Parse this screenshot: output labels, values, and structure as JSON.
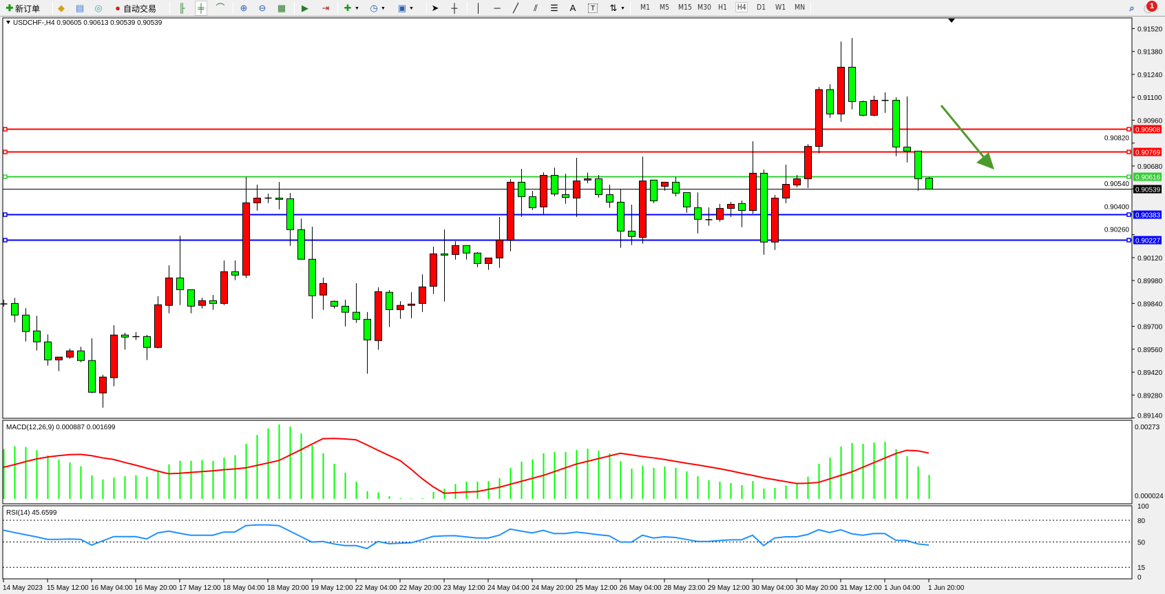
{
  "toolbar": {
    "new_order_label": "新订单",
    "auto_trading_label": "自动交易",
    "timeframes": [
      "M1",
      "M5",
      "M15",
      "M30",
      "H1",
      "H4",
      "D1",
      "W1",
      "MN"
    ],
    "active_timeframe": "H4",
    "notification_count": "1",
    "icons": [
      "new-order-icon",
      "gold-icon",
      "terminal-icon",
      "signals-icon",
      "auto-trading-icon",
      "bar-chart-icon",
      "candlestick-icon",
      "line-chart-icon",
      "zoom-in-icon",
      "zoom-out-icon",
      "tile-windows-icon",
      "auto-scroll-icon",
      "chart-shift-icon",
      "indicators-icon",
      "periods-icon",
      "templates-icon",
      "cursor-icon",
      "crosshair-icon",
      "vertical-line-icon",
      "horizontal-line-icon",
      "trendline-icon",
      "equidistant-channel-icon",
      "fibonacci-icon",
      "text-icon",
      "text-label-icon",
      "arrows-icon",
      "search-icon",
      "notification-icon"
    ],
    "text_tool_label": "A"
  },
  "chart": {
    "title": "USDCHF-,H4  0.90605 0.90613 0.90539 0.90539",
    "colors": {
      "bull": "#ff0000",
      "bear": "#00ff00",
      "resistance": "#ff0000",
      "pivot": "#32cd32",
      "support": "#0000ff",
      "bid": "#000000",
      "arrow": "#4e9a2a"
    },
    "ylim": [
      0.89138,
      0.91581
    ],
    "price_ticks": [
      "0.91520",
      "0.91380",
      "0.91240",
      "0.91100",
      "0.90960",
      "0.90820",
      "0.90680",
      "0.90540",
      "0.90400",
      "0.90260",
      "0.90120",
      "0.89980",
      "0.89840",
      "0.89700",
      "0.89560",
      "0.89420",
      "0.89280",
      "0.89140"
    ],
    "levels": [
      {
        "price": "0.90908",
        "type": "resistance",
        "color": "#ff0000"
      },
      {
        "price": "0.90769",
        "type": "resistance",
        "color": "#ff0000"
      },
      {
        "price": "0.90616",
        "type": "pivot",
        "color": "#32cd32"
      },
      {
        "price": "0.90539",
        "type": "bid",
        "color": "#000000"
      },
      {
        "price": "0.90383",
        "type": "support",
        "color": "#0000ff"
      },
      {
        "price": "0.90227",
        "type": "support",
        "color": "#0000ff"
      }
    ],
    "time_labels": [
      {
        "i": 0,
        "t": "14 May 2023"
      },
      {
        "i": 4,
        "t": "15 May 12:00"
      },
      {
        "i": 8,
        "t": "16 May 04:00"
      },
      {
        "i": 12,
        "t": "16 May 20:00"
      },
      {
        "i": 16,
        "t": "17 May 12:00"
      },
      {
        "i": 20,
        "t": "18 May 04:00"
      },
      {
        "i": 24,
        "t": "18 May 20:00"
      },
      {
        "i": 28,
        "t": "19 May 12:00"
      },
      {
        "i": 32,
        "t": "22 May 04:00"
      },
      {
        "i": 36,
        "t": "22 May 20:00"
      },
      {
        "i": 40,
        "t": "23 May 12:00"
      },
      {
        "i": 44,
        "t": "24 May 04:00"
      },
      {
        "i": 48,
        "t": "24 May 20:00"
      },
      {
        "i": 52,
        "t": "25 May 12:00"
      },
      {
        "i": 56,
        "t": "26 May 04:00"
      },
      {
        "i": 60,
        "t": "28 May 23:00"
      },
      {
        "i": 64,
        "t": "29 May 12:00"
      },
      {
        "i": 68,
        "t": "30 May 04:00"
      },
      {
        "i": 72,
        "t": "30 May 20:00"
      },
      {
        "i": 76,
        "t": "31 May 12:00"
      },
      {
        "i": 80,
        "t": "1 Jun 04:00"
      },
      {
        "i": 84,
        "t": "1 Jun 20:00"
      }
    ]
  },
  "chart_data": [
    {
      "type": "candlestick",
      "ohlc_format": "[open,high,low,close]",
      "ylim": [
        0.89138,
        0.91581
      ],
      "ohlc": [
        [
          0.89837,
          0.89863,
          0.89821,
          0.89837
        ],
        [
          0.8984,
          0.89874,
          0.89725,
          0.89769
        ],
        [
          0.89769,
          0.89811,
          0.89607,
          0.89668
        ],
        [
          0.89672,
          0.89764,
          0.89553,
          0.89605
        ],
        [
          0.89605,
          0.89651,
          0.8946,
          0.89495
        ],
        [
          0.89495,
          0.89512,
          0.89426,
          0.89512
        ],
        [
          0.89512,
          0.89564,
          0.89502,
          0.8955
        ],
        [
          0.8955,
          0.89575,
          0.89481,
          0.89491
        ],
        [
          0.89491,
          0.89627,
          0.89292,
          0.89297
        ],
        [
          0.89293,
          0.89404,
          0.89203,
          0.8939
        ],
        [
          0.89386,
          0.89707,
          0.89334,
          0.89647
        ],
        [
          0.89647,
          0.89661,
          0.89557,
          0.89634
        ],
        [
          0.89637,
          0.89665,
          0.89616,
          0.89637
        ],
        [
          0.89638,
          0.89648,
          0.89494,
          0.89571
        ],
        [
          0.89571,
          0.89884,
          0.89565,
          0.89832
        ],
        [
          0.89828,
          0.90073,
          0.8978,
          0.89996
        ],
        [
          0.89996,
          0.90254,
          0.8983,
          0.89924
        ],
        [
          0.89924,
          0.89924,
          0.8978,
          0.89823
        ],
        [
          0.89828,
          0.89875,
          0.89809,
          0.89857
        ],
        [
          0.89857,
          0.89892,
          0.89801,
          0.8984
        ],
        [
          0.8984,
          0.90103,
          0.8983,
          0.90034
        ],
        [
          0.90034,
          0.90103,
          0.89982,
          0.90013
        ],
        [
          0.90013,
          0.90613,
          0.89995,
          0.90455
        ],
        [
          0.90455,
          0.90566,
          0.90407,
          0.90484
        ],
        [
          0.90484,
          0.90511,
          0.90453,
          0.90484
        ],
        [
          0.90484,
          0.90582,
          0.90415,
          0.90476
        ],
        [
          0.9048,
          0.90515,
          0.90192,
          0.90291
        ],
        [
          0.90291,
          0.90359,
          0.9011,
          0.9011
        ],
        [
          0.9011,
          0.90309,
          0.89746,
          0.89887
        ],
        [
          0.89891,
          0.89997,
          0.89801,
          0.89962
        ],
        [
          0.89853,
          0.89858,
          0.89809,
          0.89823
        ],
        [
          0.89823,
          0.89863,
          0.897,
          0.89786
        ],
        [
          0.89786,
          0.89964,
          0.89721,
          0.89743
        ],
        [
          0.89743,
          0.89787,
          0.8941,
          0.89617
        ],
        [
          0.89613,
          0.89938,
          0.89557,
          0.89912
        ],
        [
          0.89908,
          0.89922,
          0.89696,
          0.89802
        ],
        [
          0.89802,
          0.89854,
          0.89746,
          0.89828
        ],
        [
          0.89828,
          0.89909,
          0.8975,
          0.89836
        ],
        [
          0.8984,
          0.90018,
          0.89788,
          0.89941
        ],
        [
          0.89945,
          0.90187,
          0.89898,
          0.90143
        ],
        [
          0.90143,
          0.90292,
          0.89851,
          0.90135
        ],
        [
          0.90139,
          0.9022,
          0.90108,
          0.90194
        ],
        [
          0.90194,
          0.90194,
          0.90108,
          0.90148
        ],
        [
          0.90148,
          0.90153,
          0.90062,
          0.90084
        ],
        [
          0.90084,
          0.90118,
          0.90045,
          0.90118
        ],
        [
          0.90118,
          0.90368,
          0.90058,
          0.90227
        ],
        [
          0.90227,
          0.90599,
          0.90159,
          0.90581
        ],
        [
          0.90581,
          0.90662,
          0.90369,
          0.90493
        ],
        [
          0.90493,
          0.90528,
          0.90411,
          0.90425
        ],
        [
          0.9043,
          0.90641,
          0.90387,
          0.90623
        ],
        [
          0.90623,
          0.9067,
          0.90495,
          0.90509
        ],
        [
          0.90505,
          0.90633,
          0.90449,
          0.90488
        ],
        [
          0.90484,
          0.9073,
          0.90369,
          0.90589
        ],
        [
          0.90594,
          0.9064,
          0.90575,
          0.90602
        ],
        [
          0.90602,
          0.90625,
          0.90487,
          0.90505
        ],
        [
          0.90505,
          0.90566,
          0.90424,
          0.90459
        ],
        [
          0.90459,
          0.90538,
          0.9018,
          0.90282
        ],
        [
          0.90282,
          0.90443,
          0.90197,
          0.90249
        ],
        [
          0.90244,
          0.90738,
          0.90205,
          0.90589
        ],
        [
          0.90594,
          0.90594,
          0.90453,
          0.90467
        ],
        [
          0.90556,
          0.90581,
          0.90529,
          0.90581
        ],
        [
          0.90581,
          0.90613,
          0.90495,
          0.90514
        ],
        [
          0.90518,
          0.90518,
          0.90394,
          0.9043
        ],
        [
          0.90425,
          0.90519,
          0.90268,
          0.90354
        ],
        [
          0.90352,
          0.90427,
          0.90315,
          0.90352
        ],
        [
          0.90354,
          0.90448,
          0.9034,
          0.90421
        ],
        [
          0.90421,
          0.9046,
          0.90369,
          0.90446
        ],
        [
          0.90451,
          0.90469,
          0.90306,
          0.90408
        ],
        [
          0.90408,
          0.90831,
          0.90389,
          0.90636
        ],
        [
          0.90636,
          0.90658,
          0.90138,
          0.90215
        ],
        [
          0.90215,
          0.90503,
          0.90167,
          0.90484
        ],
        [
          0.90484,
          0.90688,
          0.90453,
          0.90568
        ],
        [
          0.90564,
          0.90625,
          0.9055,
          0.90602
        ],
        [
          0.90602,
          0.90814,
          0.90546,
          0.908
        ],
        [
          0.908,
          0.91163,
          0.90757,
          0.91147
        ],
        [
          0.91147,
          0.9118,
          0.90975,
          0.90998
        ],
        [
          0.90998,
          0.91441,
          0.9095,
          0.91284
        ],
        [
          0.91284,
          0.91462,
          0.91026,
          0.91074
        ],
        [
          0.91074,
          0.91079,
          0.90984,
          0.9099
        ],
        [
          0.9099,
          0.91109,
          0.90985,
          0.91082
        ],
        [
          0.91081,
          0.9113,
          0.91005,
          0.91081
        ],
        [
          0.91082,
          0.911,
          0.9074,
          0.90796
        ],
        [
          0.90796,
          0.91105,
          0.90702,
          0.90771
        ],
        [
          0.90771,
          0.90771,
          0.90529,
          0.90602
        ],
        [
          0.90605,
          0.90613,
          0.90539,
          0.90539
        ]
      ]
    },
    {
      "type": "bar+line",
      "label": "MACD(12,26,9) 0.000887 0.001699",
      "ylim": [
        -0.00018,
        0.00291
      ],
      "axis_labels": [
        "0.00273",
        "0.000024"
      ],
      "histogram": [
        0.00184,
        0.00195,
        0.00192,
        0.00181,
        0.00161,
        0.00146,
        0.00135,
        0.00121,
        0.00087,
        0.00072,
        0.00079,
        0.00084,
        0.00087,
        0.00082,
        0.001,
        0.00128,
        0.00141,
        0.00141,
        0.00144,
        0.00141,
        0.00153,
        0.00162,
        0.00204,
        0.00237,
        0.00261,
        0.00276,
        0.00268,
        0.00243,
        0.00199,
        0.00169,
        0.0013,
        0.00097,
        0.00064,
        0.00029,
        0.00024,
        0.0001,
        3e-05,
        2e-05,
        3e-05,
        0.00026,
        0.00038,
        0.00055,
        0.00064,
        0.00064,
        0.00066,
        0.00077,
        0.00115,
        0.00138,
        0.00146,
        0.00169,
        0.00174,
        0.00174,
        0.00181,
        0.00186,
        0.00179,
        0.00168,
        0.0014,
        0.00112,
        0.00123,
        0.00115,
        0.0012,
        0.00115,
        0.00102,
        0.00084,
        0.00069,
        0.00064,
        0.00059,
        0.00051,
        0.00066,
        0.00038,
        0.00041,
        0.00049,
        0.00056,
        0.00082,
        0.0013,
        0.00153,
        0.00194,
        0.00207,
        0.00204,
        0.00209,
        0.00212,
        0.00184,
        0.00158,
        0.0012,
        0.000887
      ],
      "signal": [
        0.00117,
        0.00127,
        0.00138,
        0.00148,
        0.00155,
        0.0016,
        0.00164,
        0.00165,
        0.0016,
        0.00152,
        0.00146,
        0.00135,
        0.00125,
        0.00114,
        0.00103,
        0.00093,
        0.00095,
        0.00098,
        0.00101,
        0.00104,
        0.00108,
        0.00111,
        0.00115,
        0.00124,
        0.00133,
        0.00142,
        0.00162,
        0.00182,
        0.00203,
        0.00223,
        0.00224,
        0.00222,
        0.00219,
        0.002,
        0.0018,
        0.00161,
        0.00142,
        0.0011,
        0.00075,
        0.00045,
        0.00021,
        0.00023,
        0.00025,
        0.00027,
        0.00035,
        0.00043,
        0.00054,
        0.00065,
        0.00076,
        0.00087,
        0.00101,
        0.00115,
        0.00129,
        0.00139,
        0.00149,
        0.00159,
        0.00169,
        0.00163,
        0.00157,
        0.00152,
        0.00146,
        0.00139,
        0.00132,
        0.00126,
        0.00119,
        0.00112,
        0.00104,
        0.00095,
        0.00087,
        0.00078,
        0.00071,
        0.00064,
        0.00057,
        0.00058,
        0.00061,
        0.00074,
        0.00087,
        0.001,
        0.00117,
        0.00134,
        0.00151,
        0.00168,
        0.0018,
        0.00178,
        0.001699
      ],
      "colors": {
        "histogram": "#00ff00",
        "signal": "#ff0000"
      }
    },
    {
      "type": "line",
      "label": "RSI(14) 45.6599",
      "ylim": [
        -1,
        100
      ],
      "levels": [
        80,
        50,
        15
      ],
      "axis_labels": [
        "100",
        "80",
        "50",
        "15",
        "0"
      ],
      "color": "#1e90ff",
      "values": [
        66.3,
        63,
        60,
        57,
        53.6,
        53.6,
        54,
        53.6,
        45.7,
        51.5,
        57.4,
        57.4,
        57.4,
        54.2,
        62.5,
        65,
        62,
        59.3,
        59.3,
        59.3,
        63.7,
        63.7,
        72.6,
        73.6,
        73.6,
        72.6,
        65,
        57.5,
        49.8,
        50.7,
        47.3,
        45,
        45,
        40.9,
        50.7,
        47.6,
        48.3,
        48.9,
        53,
        57.7,
        58.4,
        58.7,
        57,
        55.5,
        55.5,
        59.3,
        67.8,
        65,
        62.5,
        66,
        61.6,
        61.6,
        63.7,
        62,
        60,
        58.4,
        49.8,
        49.8,
        59.3,
        55.5,
        57.1,
        56.2,
        53.5,
        50.7,
        50.7,
        52,
        53,
        53,
        59.3,
        45,
        55.5,
        57.1,
        57.1,
        60.3,
        66.9,
        63,
        66.9,
        61.3,
        59.3,
        61.6,
        61.6,
        52.3,
        52,
        47.3,
        45.66
      ]
    }
  ]
}
